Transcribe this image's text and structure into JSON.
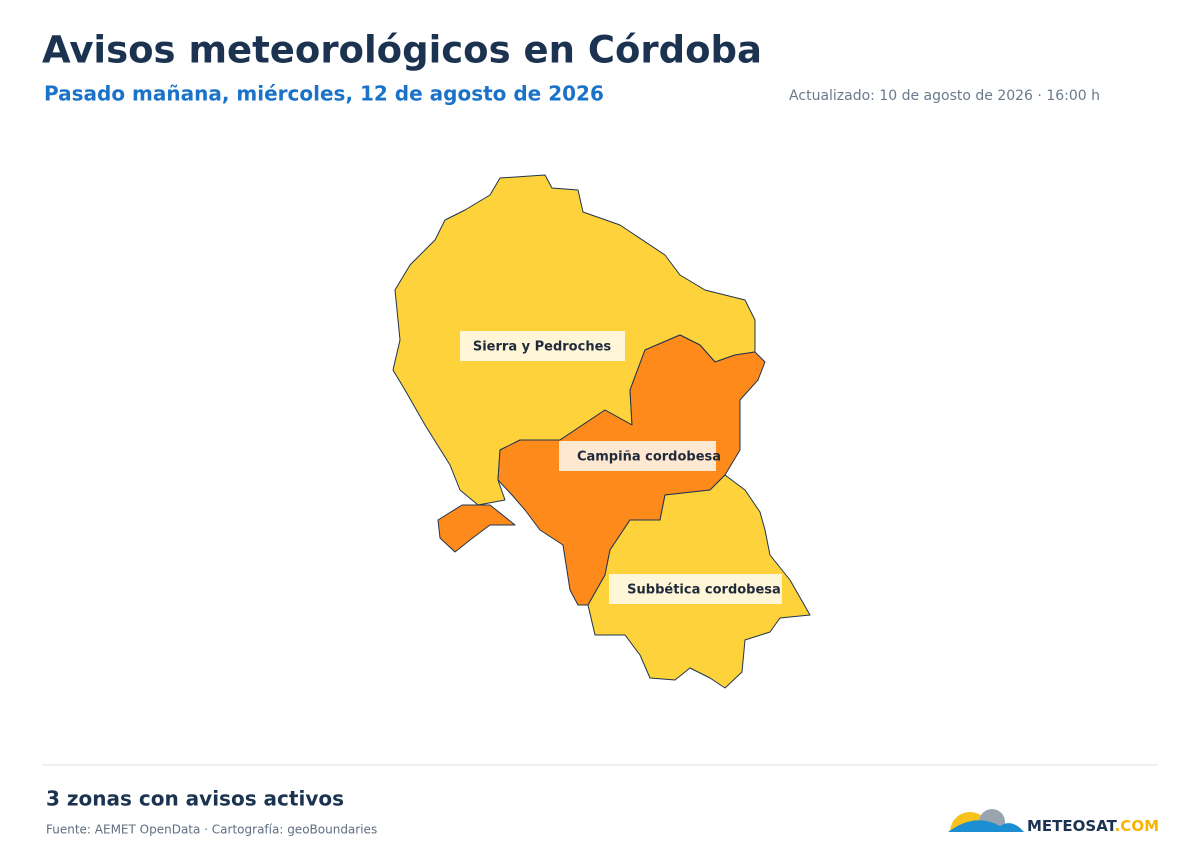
{
  "header": {
    "title": "Avisos meteorológicos en Córdoba",
    "subtitle": "Pasado mañana, miércoles, 12 de agosto de 2026",
    "updated": "Actualizado: 10 de agosto de 2026 · 16:00 h"
  },
  "zones": [
    {
      "label": "Sierra y Pedroches",
      "color": "#fdd23a"
    },
    {
      "label": "Campiña cordobesa",
      "color": "#fd8a1a"
    },
    {
      "label": "Subbética cordobesa",
      "color": "#fdd23a"
    }
  ],
  "footer": {
    "summary": "3 zonas con avisos activos",
    "source": "Fuente: AEMET OpenData · Cartografía: geoBoundaries",
    "logo": [
      "METEOSAT",
      ".COM"
    ]
  }
}
